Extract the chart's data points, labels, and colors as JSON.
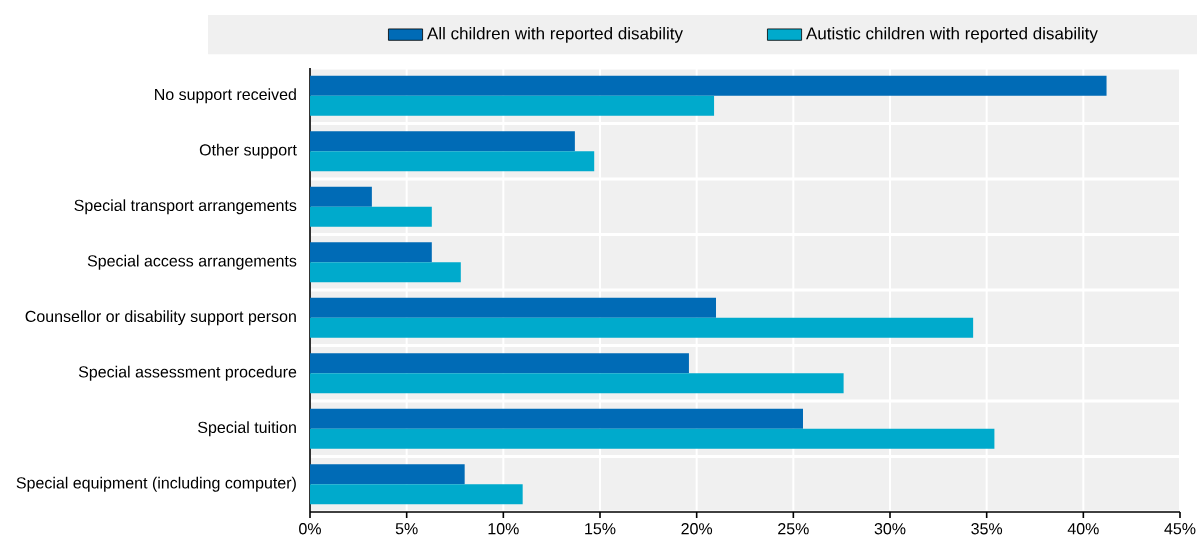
{
  "chart_data": {
    "type": "bar",
    "orientation": "horizontal",
    "categories": [
      "No support received",
      "Other support",
      "Special transport arrangements",
      "Special access arrangements",
      "Counsellor or disability support person",
      "Special assessment procedure",
      "Special tuition",
      "Special equipment (including computer)"
    ],
    "series": [
      {
        "name": "All children with reported disability",
        "color": "#006bb6",
        "values": [
          41.2,
          13.7,
          3.2,
          6.3,
          21.0,
          19.6,
          25.5,
          8.0
        ]
      },
      {
        "name": "Autistic children with reported disability",
        "color": "#00aacc",
        "values": [
          20.9,
          14.7,
          6.3,
          7.8,
          34.3,
          27.6,
          35.4,
          11.0
        ]
      }
    ],
    "xlim": [
      0,
      45
    ],
    "xticks": [
      {
        "value": 0,
        "label": "0%"
      },
      {
        "value": 5,
        "label": "5%"
      },
      {
        "value": 10,
        "label": "10%"
      },
      {
        "value": 15,
        "label": "15%"
      },
      {
        "value": 20,
        "label": "20%"
      },
      {
        "value": 25,
        "label": "25%"
      },
      {
        "value": 30,
        "label": "30%"
      },
      {
        "value": 35,
        "label": "35%"
      },
      {
        "value": 40,
        "label": "40%"
      },
      {
        "value": 45,
        "label": "45%"
      }
    ],
    "grid": true,
    "legend": "top"
  }
}
